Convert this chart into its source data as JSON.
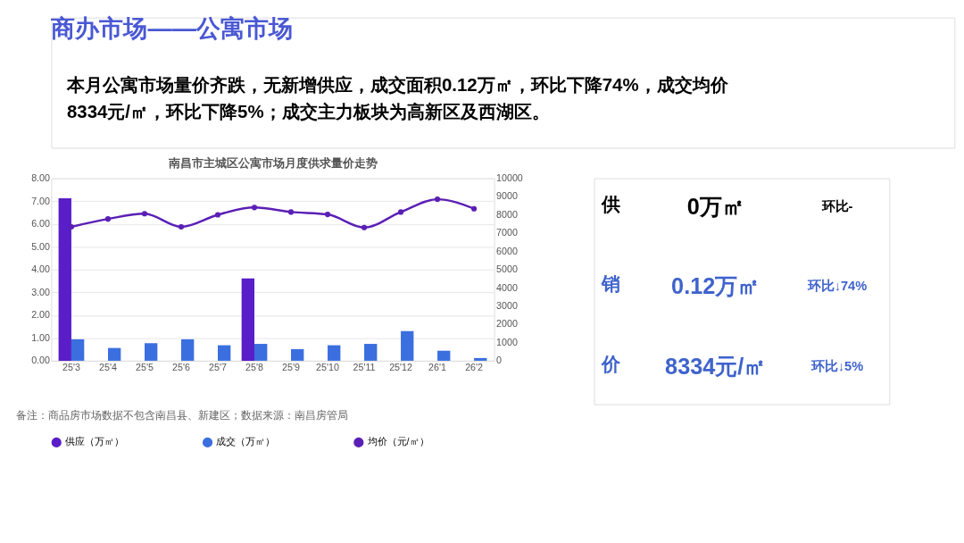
{
  "chart_data": [
    {
      "type": "other",
      "title": "商办市场——公寓市场",
      "subtitle": "本月公寓市场量价齐跌，无新增供应，成交面积0.12万㎡，环比下降74%，成交均价\n8334元/㎡，环比下降5%；成交主力板块为高新区及西湖区。"
    },
    {
      "type": "bar",
      "title": "南昌市主城区公寓市场月度供求量价走势",
      "categories": [
        "25'3",
        "25'4",
        "25'5",
        "25'6",
        "25'7",
        "25'8",
        "25'9",
        "25'10",
        "25'11",
        "25'12",
        "26'1",
        "26'2"
      ],
      "series": [
        {
          "name": "供应（万㎡）",
          "color": "#5a1ec8",
          "values": [
            7.12,
            0,
            0,
            0,
            0,
            3.61,
            0,
            0,
            0,
            0,
            0,
            0
          ]
        },
        {
          "name": "成交（万㎡）",
          "color": "#3b6fe0",
          "values": [
            0.94,
            0.56,
            0.77,
            0.94,
            0.68,
            0.74,
            0.51,
            0.68,
            0.74,
            1.3,
            0.44,
            0.12
          ]
        },
        {
          "name": "均价（元/㎡）",
          "color": "#5a1fb5",
          "type": "line",
          "axis": "y2",
          "values": [
            7340,
            7770,
            8060,
            7340,
            8000,
            8400,
            8150,
            8020,
            7300,
            8150,
            8850,
            8330
          ]
        }
      ],
      "ylim": [
        0,
        8
      ],
      "yticks": [
        {
          "value": 0,
          "label": "0.00"
        },
        {
          "value": 1,
          "label": "1.00"
        },
        {
          "value": 2,
          "label": "2.00"
        },
        {
          "value": 3,
          "label": "3.00"
        },
        {
          "value": 4,
          "label": "4.00"
        },
        {
          "value": 5,
          "label": "5.00"
        },
        {
          "value": 6,
          "label": "6.00"
        },
        {
          "value": 7,
          "label": "7.00"
        },
        {
          "value": 8,
          "label": "8.00"
        }
      ],
      "y2lim": [
        0,
        10000
      ],
      "y2ticks": [
        0,
        1000,
        2000,
        3000,
        4000,
        5000,
        6000,
        7000,
        8000,
        9000,
        10000
      ],
      "grid": "y",
      "legend": "bottom",
      "marker": "circle",
      "line_style": "solid",
      "annotations": [
        "备注：商品房市场数据不包含南昌县、新建区；数据来源：南昌房管局"
      ]
    },
    {
      "type": "other",
      "annotations": [
        "供",
        "0万㎡",
        "环比-",
        "销",
        "0.12万㎡",
        "环比↓74%",
        "价",
        "8334元/㎡",
        "环比↓5%"
      ]
    }
  ]
}
